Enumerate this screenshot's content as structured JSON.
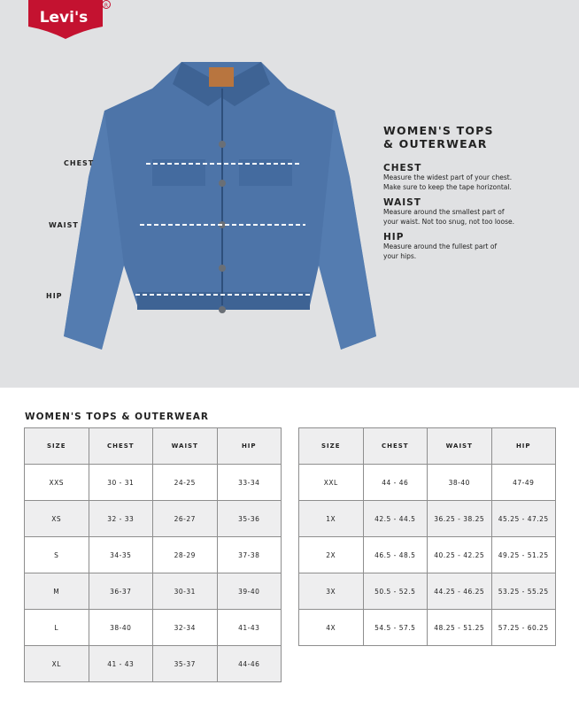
{
  "brand": {
    "logo_text": "Levi's",
    "color": "#c41230"
  },
  "hero": {
    "labels": {
      "chest": "CHEST",
      "waist": "WAIST",
      "hip": "HIP"
    },
    "guide": {
      "title_line1": "WOMEN'S TOPS",
      "title_line2": "& OUTERWEAR",
      "items": [
        {
          "heading": "CHEST",
          "line1": "Measure the widest part of your chest.",
          "line2": "Make sure to keep the tape horizontal."
        },
        {
          "heading": "WAIST",
          "line1": "Measure around the smallest part of",
          "line2": "your waist. Not too snug, not too loose."
        },
        {
          "heading": "HIP",
          "line1": "Measure around the fullest part of",
          "line2": "your hips."
        }
      ]
    }
  },
  "table_title": "WOMEN'S TOPS & OUTERWEAR",
  "headers": [
    "SIZE",
    "CHEST",
    "WAIST",
    "HIP"
  ],
  "table1": [
    [
      "XXS",
      "30 - 31",
      "24-25",
      "33-34"
    ],
    [
      "XS",
      "32 - 33",
      "26-27",
      "35-36"
    ],
    [
      "S",
      "34-35",
      "28-29",
      "37-38"
    ],
    [
      "M",
      "36-37",
      "30-31",
      "39-40"
    ],
    [
      "L",
      "38-40",
      "32-34",
      "41-43"
    ],
    [
      "XL",
      "41 - 43",
      "35-37",
      "44-46"
    ]
  ],
  "table2": [
    [
      "XXL",
      "44 - 46",
      "38-40",
      "47-49"
    ],
    [
      "1X",
      "42.5 - 44.5",
      "36.25 - 38.25",
      "45.25 - 47.25"
    ],
    [
      "2X",
      "46.5 - 48.5",
      "40.25 - 42.25",
      "49.25 - 51.25"
    ],
    [
      "3X",
      "50.5 - 52.5",
      "44.25 - 46.25",
      "53.25 - 55.25"
    ],
    [
      "4X",
      "54.5 - 57.5",
      "48.25 - 51.25",
      "57.25 - 60.25"
    ]
  ]
}
